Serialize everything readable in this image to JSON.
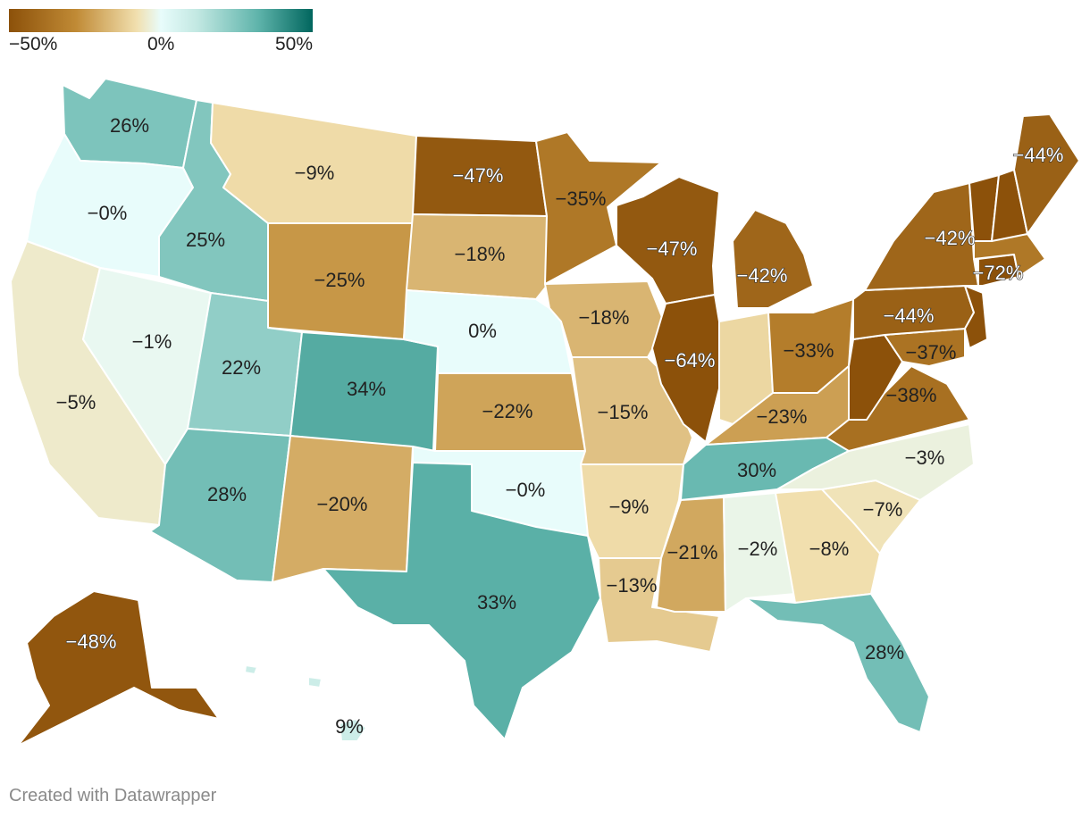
{
  "legend": {
    "min_label": "−50%",
    "mid_label": "0%",
    "max_label": "50%",
    "colors": [
      "#8c510a",
      "#c08a35",
      "#f1dfae",
      "#e8fcfb",
      "#c2e8e2",
      "#5fb4ab",
      "#01665e"
    ]
  },
  "credit": "Created with Datawrapper",
  "chart_data": {
    "type": "choropleth",
    "scale": {
      "min": -50,
      "mid": 0,
      "max": 50,
      "unit": "%"
    },
    "states": [
      {
        "id": "WA",
        "label": "26%",
        "value": 26
      },
      {
        "id": "OR",
        "label": "−0%",
        "value": 0
      },
      {
        "id": "CA",
        "label": "−5%",
        "value": -5
      },
      {
        "id": "NV",
        "label": "−1%",
        "value": -1
      },
      {
        "id": "ID",
        "label": "25%",
        "value": 25
      },
      {
        "id": "MT",
        "label": "−9%",
        "value": -9
      },
      {
        "id": "WY",
        "label": "−25%",
        "value": -25
      },
      {
        "id": "UT",
        "label": "22%",
        "value": 22
      },
      {
        "id": "AZ",
        "label": "28%",
        "value": 28
      },
      {
        "id": "CO",
        "label": "34%",
        "value": 34
      },
      {
        "id": "NM",
        "label": "−20%",
        "value": -20
      },
      {
        "id": "ND",
        "label": "−47%",
        "value": -47
      },
      {
        "id": "SD",
        "label": "−18%",
        "value": -18
      },
      {
        "id": "NE",
        "label": "0%",
        "value": 0
      },
      {
        "id": "KS",
        "label": "−22%",
        "value": -22
      },
      {
        "id": "OK",
        "label": "−0%",
        "value": 0
      },
      {
        "id": "TX",
        "label": "33%",
        "value": 33
      },
      {
        "id": "MN",
        "label": "−35%",
        "value": -35
      },
      {
        "id": "IA",
        "label": "−18%",
        "value": -18
      },
      {
        "id": "MO",
        "label": "−15%",
        "value": -15
      },
      {
        "id": "AR",
        "label": "−9%",
        "value": -9
      },
      {
        "id": "LA",
        "label": "−13%",
        "value": -13
      },
      {
        "id": "WI",
        "label": "−47%",
        "value": -47
      },
      {
        "id": "IL",
        "label": "−64%",
        "value": -64
      },
      {
        "id": "MI",
        "label": "−42%",
        "value": -42
      },
      {
        "id": "IN",
        "label": "",
        "value": -10
      },
      {
        "id": "OH",
        "label": "−33%",
        "value": -33
      },
      {
        "id": "KY",
        "label": "−23%",
        "value": -23
      },
      {
        "id": "TN",
        "label": "30%",
        "value": 30
      },
      {
        "id": "MS",
        "label": "−21%",
        "value": -21
      },
      {
        "id": "AL",
        "label": "−2%",
        "value": -2
      },
      {
        "id": "GA",
        "label": "−8%",
        "value": -8
      },
      {
        "id": "FL",
        "label": "28%",
        "value": 28
      },
      {
        "id": "SC",
        "label": "−7%",
        "value": -7
      },
      {
        "id": "NC",
        "label": "−3%",
        "value": -3
      },
      {
        "id": "VA",
        "label": "−38%",
        "value": -38
      },
      {
        "id": "WV",
        "label": "",
        "value": -60
      },
      {
        "id": "MD",
        "label": "−37%",
        "value": -37
      },
      {
        "id": "PA",
        "label": "−44%",
        "value": -44
      },
      {
        "id": "NJ",
        "label": "",
        "value": -60
      },
      {
        "id": "NY",
        "label": "−42%",
        "value": -42
      },
      {
        "id": "CT",
        "label": "−72%",
        "value": -72
      },
      {
        "id": "MA",
        "label": "",
        "value": -35
      },
      {
        "id": "VT",
        "label": "",
        "value": -60
      },
      {
        "id": "NH",
        "label": "",
        "value": -50
      },
      {
        "id": "ME",
        "label": "−44%",
        "value": -44
      },
      {
        "id": "AK",
        "label": "−48%",
        "value": -48
      },
      {
        "id": "HI",
        "label": "9%",
        "value": 9
      }
    ]
  }
}
